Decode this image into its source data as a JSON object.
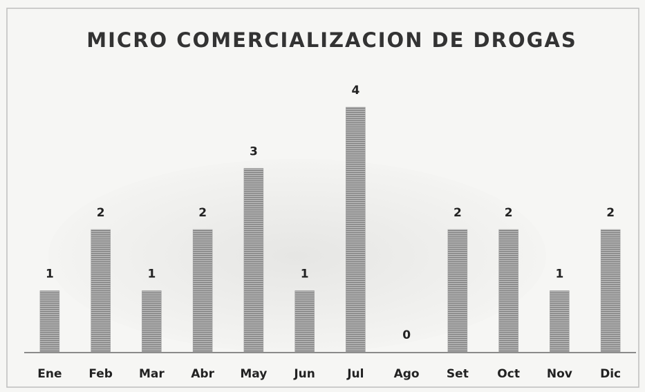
{
  "chart_data": {
    "type": "bar",
    "title": "MICRO COMERCIALIZACION DE DROGAS",
    "categories": [
      "Ene",
      "Feb",
      "Mar",
      "Abr",
      "May",
      "Jun",
      "Jul",
      "Ago",
      "Set",
      "Oct",
      "Nov",
      "Dic"
    ],
    "values": [
      1,
      2,
      1,
      2,
      3,
      1,
      4,
      0,
      2,
      2,
      1,
      2
    ],
    "color": "#9c9c9c"
  }
}
